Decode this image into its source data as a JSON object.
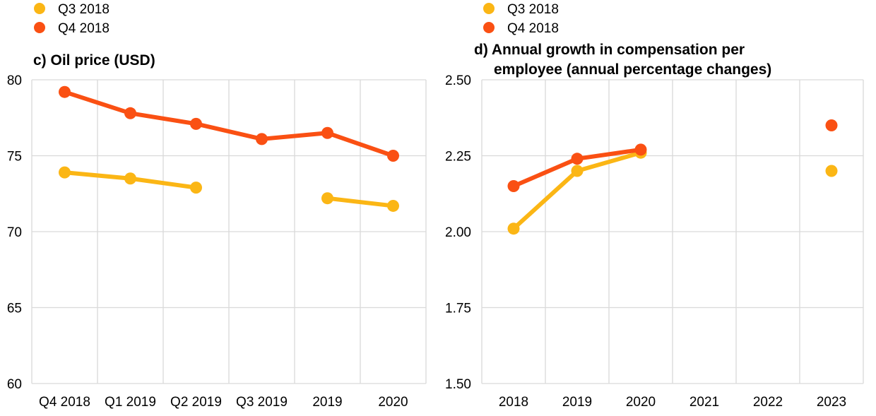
{
  "colors": {
    "q3": "#FBB615",
    "q4": "#FA5013",
    "grid": "#D9D9D9"
  },
  "chart_data": [
    {
      "type": "line",
      "title": "c) Oil price (USD)",
      "categories": [
        "Q4 2018",
        "Q1 2019",
        "Q2 2019",
        "Q3 2019",
        "2019",
        "2020"
      ],
      "ylim": [
        60,
        80
      ],
      "yticks": [
        "60",
        "65",
        "70",
        "75",
        "80"
      ],
      "grid": true,
      "legend": "top-left",
      "series": [
        {
          "name": "Q3 2018",
          "color": "#FBB615",
          "values": [
            73.9,
            73.5,
            72.9,
            null,
            72.2,
            71.7
          ]
        },
        {
          "name": "Q4 2018",
          "color": "#FA5013",
          "values": [
            79.2,
            77.8,
            77.1,
            76.1,
            76.5,
            75.0
          ]
        }
      ]
    },
    {
      "type": "line",
      "title": "d) Annual growth in compensation per employee (annual percentage changes)",
      "title_lines": [
        "d) Annual growth in compensation per",
        "employee (annual percentage changes)"
      ],
      "categories": [
        "2018",
        "2019",
        "2020",
        "2021",
        "2022",
        "2023"
      ],
      "ylim": [
        1.5,
        2.5
      ],
      "yticks": [
        "1.50",
        "1.75",
        "2.00",
        "2.25",
        "2.50"
      ],
      "grid": true,
      "legend": "top-left",
      "series": [
        {
          "name": "Q3 2018",
          "color": "#FBB615",
          "values": [
            2.01,
            2.2,
            2.26,
            null,
            null,
            2.2
          ]
        },
        {
          "name": "Q4 2018",
          "color": "#FA5013",
          "values": [
            2.15,
            2.24,
            2.27,
            null,
            null,
            2.35
          ]
        }
      ]
    }
  ]
}
